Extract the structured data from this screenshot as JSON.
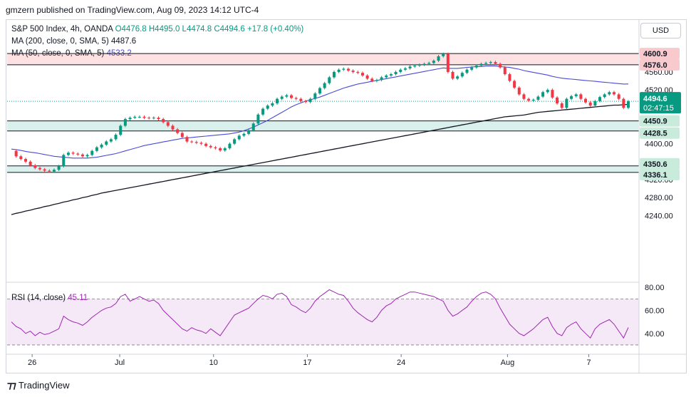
{
  "header": {
    "publisher": "gmzern published on TradingView.com, Aug 09, 2023 14:12 UTC-4"
  },
  "legend": {
    "symbol": "S&P 500 Index, 4h, OANDA",
    "ohlc": "O4476.8 H4495.0 L4474.8 C4494.6 +17.8 (+0.40%)",
    "ma200_label": "MA (200, close, 0, SMA, 5)",
    "ma200_value": "4487.6",
    "ma50_label": "MA (50, close, 0, SMA, 5)",
    "ma50_value": "4533.2"
  },
  "currency": "USD",
  "rsi": {
    "label": "RSI (14, close)",
    "value": "45.11"
  },
  "footer": {
    "brand": "TradingView"
  },
  "colors": {
    "up": "#089981",
    "down": "#f23645",
    "ma200": "#131722",
    "ma50": "#4a4ad8",
    "rsi": "#9c27b0"
  },
  "chart_data": {
    "type": "candlestick",
    "price_axis": {
      "ticks": [
        4240.0,
        4280.0,
        4320.0,
        4360.0,
        4400.0,
        4520.0,
        4560.0
      ],
      "range": [
        4220,
        4625
      ]
    },
    "x_ticks": [
      "26",
      "Jul",
      "10",
      "17",
      "24",
      "Aug",
      "7"
    ],
    "price_labels": [
      {
        "text": "4600.9",
        "kind": "zone"
      },
      {
        "text": "4576.0",
        "kind": "zone"
      },
      {
        "text": "4450.9",
        "kind": "zone"
      },
      {
        "text": "4428.5",
        "kind": "zone"
      },
      {
        "text": "4350.6",
        "kind": "zone"
      },
      {
        "text": "4336.1",
        "kind": "zone"
      },
      {
        "text": "4494.6",
        "kind": "last"
      },
      {
        "text": "02:47:15",
        "kind": "countdown"
      }
    ],
    "zones": [
      {
        "low": 4576.0,
        "high": 4600.9,
        "color": "#f23645"
      },
      {
        "low": 4428.5,
        "high": 4450.9,
        "color": "#089981"
      },
      {
        "low": 4336.1,
        "high": 4350.6,
        "color": "#089981"
      }
    ],
    "last_price": 4494.6,
    "series_close": [
      4384,
      4372,
      4366,
      4360,
      4352,
      4346,
      4343,
      4340,
      4338,
      4342,
      4350,
      4375,
      4380,
      4378,
      4376,
      4372,
      4375,
      4384,
      4392,
      4398,
      4405,
      4410,
      4420,
      4440,
      4455,
      4458,
      4460,
      4460,
      4458,
      4457,
      4458,
      4455,
      4448,
      4440,
      4432,
      4424,
      4415,
      4405,
      4404,
      4402,
      4400,
      4395,
      4392,
      4390,
      4385,
      4390,
      4400,
      4410,
      4418,
      4422,
      4430,
      4445,
      4465,
      4478,
      4485,
      4490,
      4500,
      4505,
      4508,
      4502,
      4500,
      4495,
      4493,
      4500,
      4512,
      4524,
      4535,
      4548,
      4560,
      4565,
      4567,
      4563,
      4560,
      4558,
      4552,
      4545,
      4540,
      4542,
      4548,
      4552,
      4555,
      4560,
      4565,
      4568,
      4572,
      4574,
      4576,
      4578,
      4580,
      4585,
      4595,
      4600,
      4560,
      4545,
      4550,
      4558,
      4565,
      4570,
      4574,
      4578,
      4580,
      4582,
      4578,
      4570,
      4555,
      4540,
      4525,
      4510,
      4500,
      4496,
      4498,
      4505,
      4515,
      4520,
      4503,
      4490,
      4480,
      4500,
      4506,
      4510,
      4500,
      4492,
      4485,
      4495,
      4504,
      4510,
      4515,
      4510,
      4500,
      4480,
      4494.6
    ],
    "ma50_values": [
      4388,
      4387,
      4385,
      4383,
      4381,
      4380,
      4378,
      4376,
      4374,
      4372,
      4371,
      4370,
      4369,
      4368,
      4368,
      4368,
      4368,
      4369,
      4370,
      4372,
      4374,
      4376,
      4378,
      4381,
      4384,
      4387,
      4390,
      4393,
      4396,
      4398,
      4400,
      4402,
      4404,
      4406,
      4408,
      4410,
      4412,
      4413,
      4414,
      4415,
      4416,
      4417,
      4418,
      4419,
      4420,
      4421,
      4422,
      4424,
      4426,
      4429,
      4433,
      4437,
      4442,
      4447,
      4452,
      4458,
      4464,
      4470,
      4476,
      4482,
      4487,
      4491,
      4495,
      4498,
      4501,
      4504,
      4508,
      4512,
      4516,
      4520,
      4524,
      4527,
      4530,
      4533,
      4535,
      4537,
      4539,
      4541,
      4543,
      4545,
      4547,
      4549,
      4551,
      4553,
      4555,
      4557,
      4559,
      4561,
      4563,
      4565,
      4567,
      4569,
      4568,
      4568,
      4568,
      4569,
      4570,
      4571,
      4572,
      4572,
      4573,
      4573,
      4573,
      4572,
      4571,
      4570,
      4568,
      4566,
      4563,
      4561,
      4559,
      4557,
      4555,
      4553,
      4550,
      4548,
      4546,
      4545,
      4544,
      4543,
      4542,
      4541,
      4540,
      4539,
      4538,
      4537,
      4536,
      4535,
      4534,
      4533,
      4533.2
    ],
    "ma200_values": [
      4242,
      4245,
      4247,
      4250,
      4252,
      4255,
      4257,
      4260,
      4262,
      4265,
      4267,
      4270,
      4272,
      4275,
      4277,
      4280,
      4282,
      4285,
      4287,
      4290,
      4292,
      4294,
      4296,
      4298,
      4300,
      4302,
      4304,
      4306,
      4308,
      4310,
      4312,
      4314,
      4316,
      4318,
      4320,
      4322,
      4324,
      4326,
      4328,
      4330,
      4332,
      4334,
      4336,
      4338,
      4340,
      4342,
      4344,
      4346,
      4348,
      4350,
      4352,
      4354,
      4356,
      4358,
      4360,
      4362,
      4364,
      4366,
      4368,
      4370,
      4372,
      4374,
      4376,
      4378,
      4380,
      4382,
      4384,
      4386,
      4388,
      4390,
      4392,
      4394,
      4396,
      4398,
      4400,
      4402,
      4404,
      4406,
      4408,
      4410,
      4412,
      4414,
      4416,
      4418,
      4420,
      4422,
      4424,
      4426,
      4428,
      4430,
      4432,
      4434,
      4436,
      4438,
      4440,
      4442,
      4444,
      4446,
      4448,
      4450,
      4452,
      4454,
      4456,
      4458,
      4460,
      4461,
      4462,
      4463,
      4464,
      4466,
      4468,
      4470,
      4471,
      4472,
      4473,
      4474,
      4475,
      4476,
      4477,
      4478,
      4479,
      4480,
      4481,
      4482,
      4483,
      4484,
      4485,
      4486,
      4486,
      4487,
      4487.6
    ],
    "rsi_axis": {
      "ticks": [
        40.0,
        60.0,
        80.0
      ],
      "range": [
        25,
        82
      ],
      "upper": 70,
      "lower": 30
    },
    "rsi_values": [
      50,
      46,
      44,
      40,
      42,
      38,
      41,
      39,
      40,
      42,
      44,
      55,
      52,
      50,
      49,
      47,
      50,
      54,
      57,
      60,
      62,
      63,
      66,
      72,
      74,
      68,
      70,
      72,
      70,
      68,
      69,
      66,
      60,
      56,
      52,
      48,
      44,
      42,
      45,
      43,
      42,
      40,
      44,
      41,
      38,
      44,
      50,
      56,
      58,
      60,
      62,
      66,
      70,
      73,
      72,
      70,
      74,
      75,
      72,
      65,
      63,
      60,
      58,
      62,
      68,
      72,
      75,
      78,
      76,
      74,
      73,
      68,
      62,
      58,
      55,
      52,
      50,
      54,
      60,
      64,
      66,
      70,
      72,
      74,
      76,
      76,
      75,
      74,
      73,
      72,
      70,
      68,
      60,
      55,
      57,
      60,
      63,
      68,
      72,
      75,
      76,
      74,
      70,
      62,
      55,
      48,
      44,
      40,
      38,
      41,
      44,
      48,
      52,
      54,
      46,
      40,
      38,
      45,
      48,
      50,
      44,
      40,
      36,
      44,
      48,
      50,
      52,
      48,
      42,
      36,
      45.11
    ]
  }
}
